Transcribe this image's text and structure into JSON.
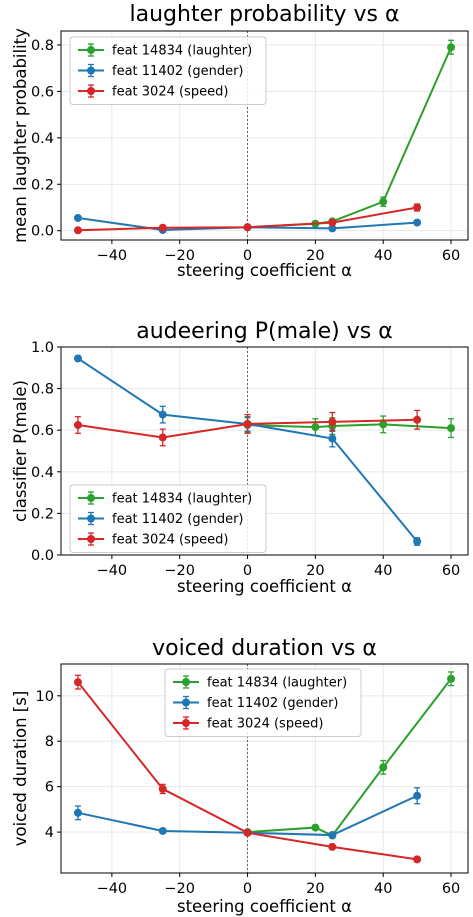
{
  "chart_data": [
    {
      "type": "line",
      "title": "laughter probability vs α",
      "xlabel": "steering coefficient α",
      "ylabel": "mean laughter probability",
      "xlim": [
        -55,
        65
      ],
      "ylim": [
        -0.04,
        0.86
      ],
      "xticks": [
        -40,
        -20,
        0,
        20,
        40,
        60
      ],
      "yticks": [
        0.0,
        0.2,
        0.4,
        0.6,
        0.8
      ],
      "ytick_labels": [
        "0.0",
        "0.2",
        "0.4",
        "0.6",
        "0.8"
      ],
      "grid": true,
      "legend_position": "top-left",
      "vline_at_x": 0,
      "series": [
        {
          "name": "feat 14834 (laughter)",
          "color": "#2ca02c",
          "x": [
            0,
            20,
            25,
            40,
            60
          ],
          "y": [
            0.015,
            0.03,
            0.04,
            0.125,
            0.79
          ],
          "err": [
            0.008,
            0.01,
            0.01,
            0.02,
            0.03
          ]
        },
        {
          "name": "feat 11402 (gender)",
          "color": "#1f77b4",
          "x": [
            -50,
            -25,
            0,
            25,
            50
          ],
          "y": [
            0.055,
            0.003,
            0.015,
            0.01,
            0.035
          ],
          "err": [
            0.006,
            0.003,
            0.005,
            0.004,
            0.008
          ]
        },
        {
          "name": "feat 3024 (speed)",
          "color": "#d62728",
          "x": [
            -50,
            -25,
            0,
            25,
            50
          ],
          "y": [
            0.002,
            0.013,
            0.015,
            0.035,
            0.1
          ],
          "err": [
            0.002,
            0.005,
            0.005,
            0.008,
            0.015
          ]
        }
      ]
    },
    {
      "type": "line",
      "title": "audeering P(male) vs α",
      "xlabel": "steering coefficient α",
      "ylabel": "classifier P(male)",
      "xlim": [
        -55,
        65
      ],
      "ylim": [
        0.0,
        1.0
      ],
      "xticks": [
        -40,
        -20,
        0,
        20,
        40,
        60
      ],
      "yticks": [
        0.0,
        0.2,
        0.4,
        0.6,
        0.8,
        1.0
      ],
      "ytick_labels": [
        "0.0",
        "0.2",
        "0.4",
        "0.6",
        "0.8",
        "1.0"
      ],
      "grid": true,
      "legend_position": "bottom-left",
      "vline_at_x": 0,
      "series": [
        {
          "name": "feat 14834 (laughter)",
          "color": "#2ca02c",
          "x": [
            0,
            20,
            25,
            40,
            60
          ],
          "y": [
            0.625,
            0.615,
            0.62,
            0.628,
            0.61
          ],
          "err": [
            0.035,
            0.04,
            0.04,
            0.04,
            0.045
          ]
        },
        {
          "name": "feat 11402 (gender)",
          "color": "#1f77b4",
          "x": [
            -50,
            -25,
            0,
            25,
            50
          ],
          "y": [
            0.945,
            0.675,
            0.63,
            0.56,
            0.065
          ],
          "err": [
            0.012,
            0.04,
            0.035,
            0.04,
            0.018
          ]
        },
        {
          "name": "feat 3024 (speed)",
          "color": "#d62728",
          "x": [
            -50,
            -25,
            0,
            25,
            50
          ],
          "y": [
            0.625,
            0.565,
            0.63,
            0.64,
            0.65
          ],
          "err": [
            0.04,
            0.04,
            0.045,
            0.045,
            0.045
          ]
        }
      ]
    },
    {
      "type": "line",
      "title": "voiced duration vs α",
      "xlabel": "steering coefficient α",
      "ylabel": "voiced duration [s]",
      "xlim": [
        -55,
        65
      ],
      "ylim": [
        2.2,
        11.4
      ],
      "xticks": [
        -40,
        -20,
        0,
        20,
        40,
        60
      ],
      "yticks": [
        4,
        6,
        8,
        10
      ],
      "ytick_labels": [
        "4",
        "6",
        "8",
        "10"
      ],
      "grid": true,
      "legend_position": "top-center",
      "vline_at_x": 0,
      "series": [
        {
          "name": "feat 14834 (laughter)",
          "color": "#2ca02c",
          "x": [
            0,
            20,
            25,
            40,
            60
          ],
          "y": [
            4.0,
            4.2,
            3.85,
            6.85,
            10.75
          ],
          "err": [
            0.1,
            0.1,
            0.1,
            0.3,
            0.3
          ]
        },
        {
          "name": "feat 11402 (gender)",
          "color": "#1f77b4",
          "x": [
            -50,
            -25,
            0,
            25,
            50
          ],
          "y": [
            4.85,
            4.05,
            3.97,
            3.87,
            5.6
          ],
          "err": [
            0.3,
            0.1,
            0.1,
            0.1,
            0.35
          ]
        },
        {
          "name": "feat 3024 (speed)",
          "color": "#d62728",
          "x": [
            -50,
            -25,
            0,
            25,
            50
          ],
          "y": [
            10.6,
            5.9,
            3.97,
            3.35,
            2.8
          ],
          "err": [
            0.3,
            0.2,
            0.1,
            0.08,
            0.05
          ]
        }
      ]
    }
  ]
}
